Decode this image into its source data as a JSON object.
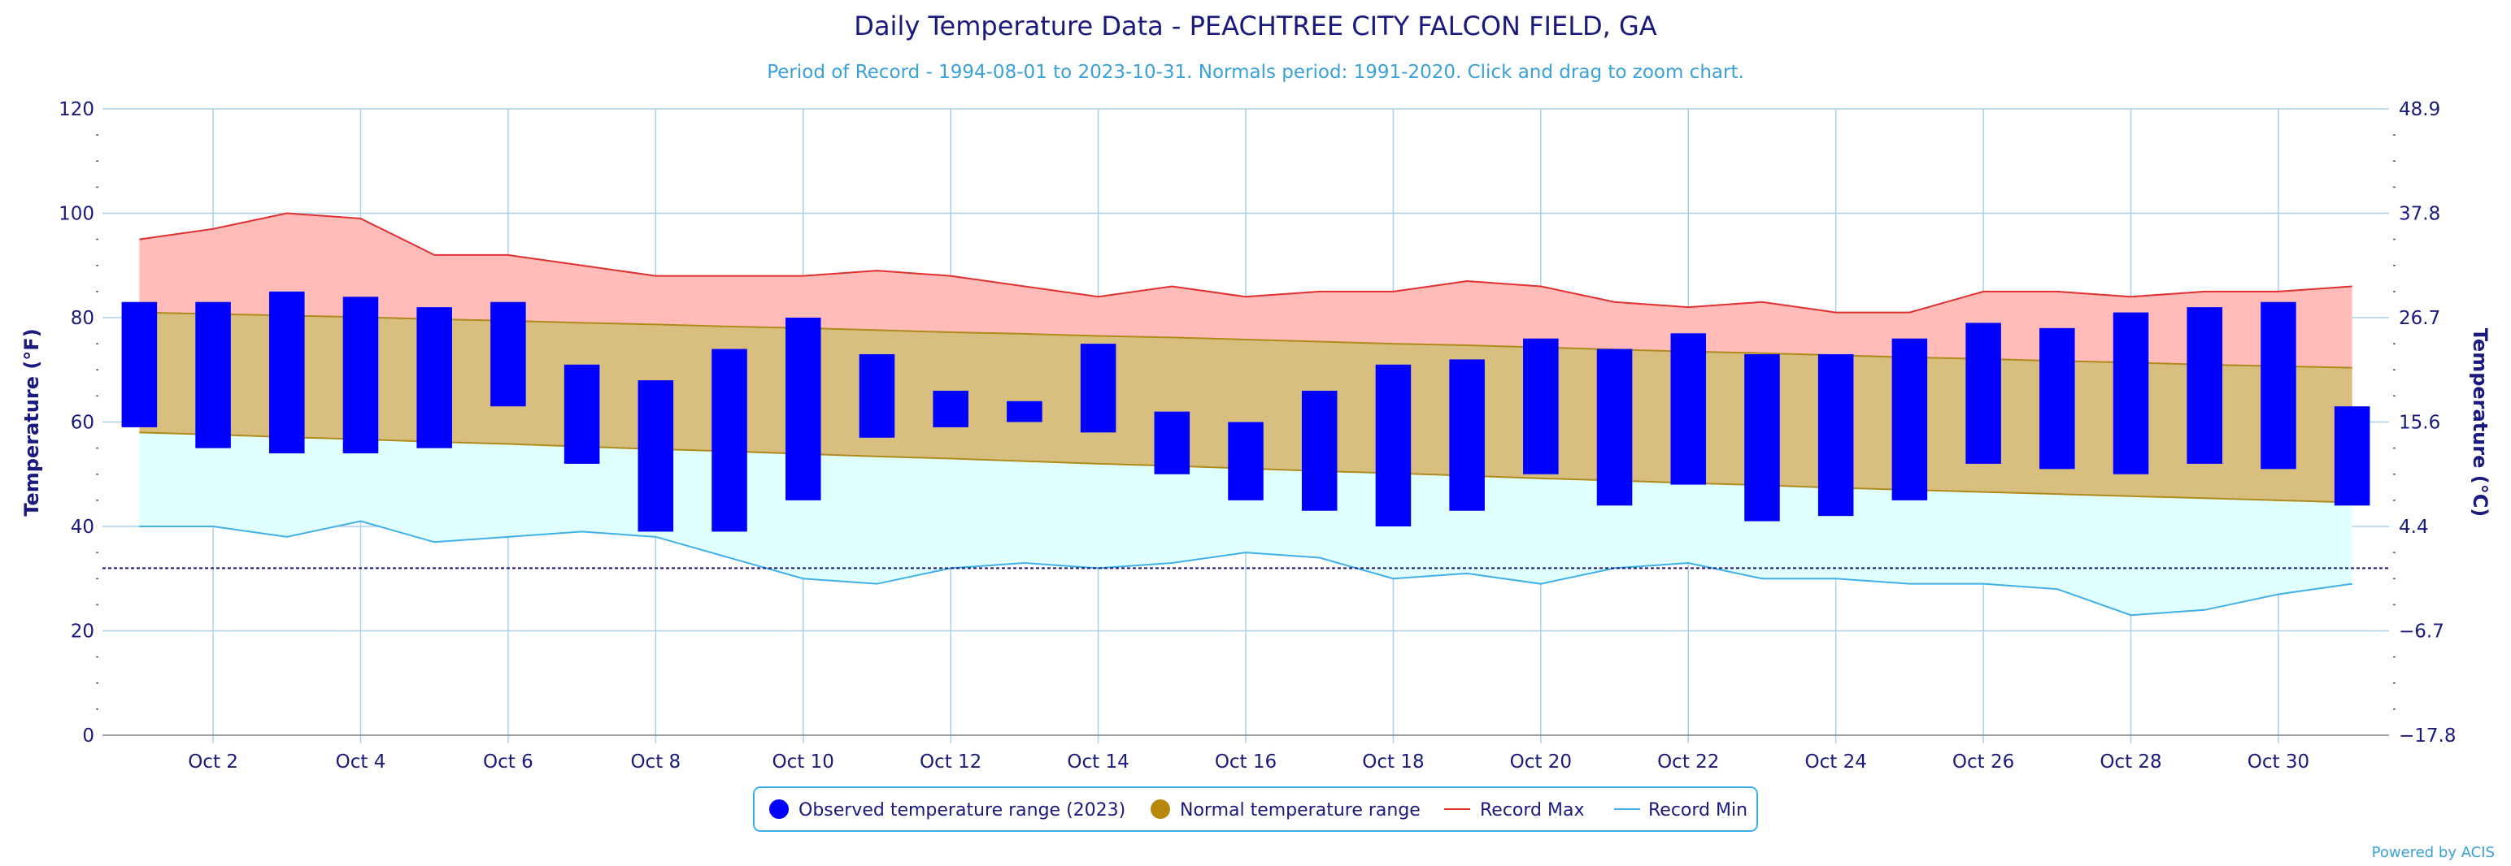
{
  "chart_data": {
    "type": "bar",
    "title": "Daily Temperature Data - PEACHTREE CITY FALCON FIELD, GA",
    "subtitle": "Period of Record - 1994-08-01 to 2023-10-31. Normals period: 1991-2020. Click and drag to zoom chart.",
    "ylabel_left": "Temperature (°F)",
    "ylabel_right": "Temperature (°C)",
    "ylim": [
      0,
      120
    ],
    "xlim": [
      0.5,
      31.5
    ],
    "y_ticks": [
      0,
      20,
      40,
      60,
      80,
      100,
      120
    ],
    "y_ticks_right": [
      {
        "f": 0,
        "label": "−17.8"
      },
      {
        "f": 20,
        "label": "−6.7"
      },
      {
        "f": 40,
        "label": "4.4"
      },
      {
        "f": 60,
        "label": "15.6"
      },
      {
        "f": 80,
        "label": "26.7"
      },
      {
        "f": 100,
        "label": "37.8"
      },
      {
        "f": 120,
        "label": "48.9"
      }
    ],
    "x_ticks": [
      {
        "day": 2,
        "label": "Oct 2"
      },
      {
        "day": 4,
        "label": "Oct 4"
      },
      {
        "day": 6,
        "label": "Oct 6"
      },
      {
        "day": 8,
        "label": "Oct 8"
      },
      {
        "day": 10,
        "label": "Oct 10"
      },
      {
        "day": 12,
        "label": "Oct 12"
      },
      {
        "day": 14,
        "label": "Oct 14"
      },
      {
        "day": 16,
        "label": "Oct 16"
      },
      {
        "day": 18,
        "label": "Oct 18"
      },
      {
        "day": 20,
        "label": "Oct 20"
      },
      {
        "day": 22,
        "label": "Oct 22"
      },
      {
        "day": 24,
        "label": "Oct 24"
      },
      {
        "day": 26,
        "label": "Oct 26"
      },
      {
        "day": 28,
        "label": "Oct 28"
      },
      {
        "day": 30,
        "label": "Oct 30"
      }
    ],
    "days": [
      1,
      2,
      3,
      4,
      5,
      6,
      7,
      8,
      9,
      10,
      11,
      12,
      13,
      14,
      15,
      16,
      17,
      18,
      19,
      20,
      21,
      22,
      23,
      24,
      25,
      26,
      27,
      28,
      29,
      30,
      31
    ],
    "observed_high": [
      83,
      83,
      85,
      84,
      82,
      83,
      71,
      68,
      74,
      80,
      73,
      66,
      64,
      75,
      62,
      60,
      66,
      71,
      72,
      76,
      74,
      77,
      73,
      73,
      76,
      79,
      78,
      81,
      82,
      83,
      63
    ],
    "observed_low": [
      59,
      55,
      54,
      54,
      55,
      63,
      52,
      39,
      39,
      45,
      57,
      59,
      60,
      58,
      50,
      45,
      43,
      40,
      43,
      50,
      44,
      48,
      41,
      42,
      45,
      52,
      51,
      50,
      52,
      51,
      44
    ],
    "normal_high": [
      81,
      80.7,
      80.4,
      80.1,
      79.7,
      79.4,
      79.0,
      78.7,
      78.3,
      78.0,
      77.6,
      77.2,
      76.9,
      76.5,
      76.2,
      75.8,
      75.4,
      75.0,
      74.7,
      74.3,
      73.9,
      73.5,
      73.2,
      72.8,
      72.4,
      72.1,
      71.7,
      71.4,
      71.0,
      70.7,
      70.4
    ],
    "normal_low": [
      58,
      57.6,
      57.1,
      56.7,
      56.2,
      55.8,
      55.3,
      54.8,
      54.4,
      53.9,
      53.4,
      53.0,
      52.5,
      52.0,
      51.6,
      51.1,
      50.6,
      50.2,
      49.7,
      49.2,
      48.8,
      48.3,
      47.9,
      47.4,
      47.0,
      46.6,
      46.2,
      45.8,
      45.4,
      45.0,
      44.6
    ],
    "record_max": [
      95,
      97,
      100,
      99,
      92,
      92,
      90,
      88,
      88,
      88,
      89,
      88,
      86,
      84,
      86,
      84,
      85,
      85,
      87,
      86,
      83,
      82,
      83,
      81,
      81,
      85,
      85,
      84,
      85,
      85,
      86
    ],
    "record_min": [
      40,
      40,
      38,
      41,
      37,
      38,
      39,
      38,
      34,
      30,
      29,
      32,
      33,
      32,
      33,
      35,
      34,
      30,
      31,
      29,
      32,
      33,
      30,
      30,
      29,
      29,
      28,
      23,
      24,
      27,
      29
    ],
    "freezing_line": 32,
    "legend": {
      "observed": "Observed temperature range (2023)",
      "normal": "Normal temperature range",
      "record_max": "Record Max",
      "record_min": "Record Min"
    },
    "credit": "Powered by ACIS",
    "colors": {
      "observed": "#0000ff",
      "normal_fill": "#d8bf80",
      "normal_edge": "#b08a1a",
      "normal_legend": "#b8860b",
      "record_max_fill": "#ffbcb8",
      "record_max_line": "#e03030",
      "record_min_fill": "#e0ffff",
      "record_min_line": "#40b0e8",
      "grid": "#a8d0ea",
      "freezing": "#1a1a7e",
      "text": "#1a1a7e"
    }
  }
}
